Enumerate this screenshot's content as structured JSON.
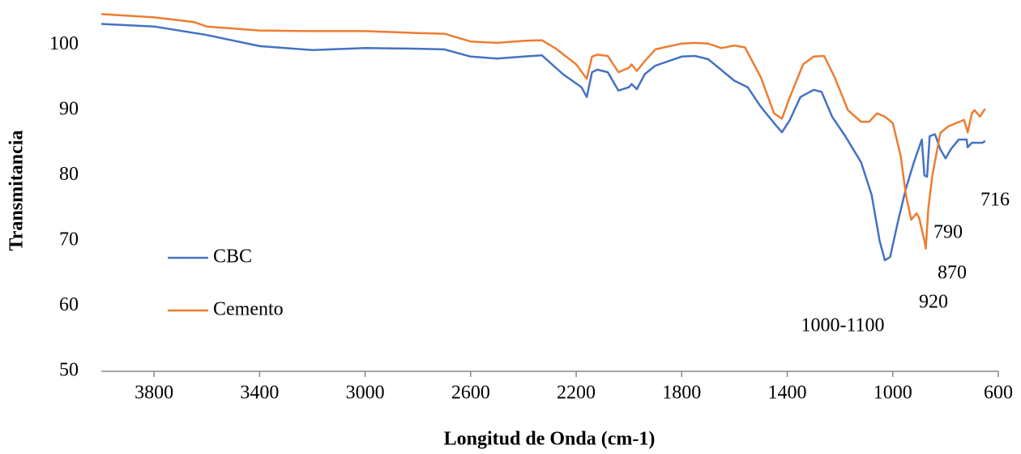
{
  "chart_data": {
    "type": "line",
    "xlabel": "Longitud de Onda (cm-1)",
    "ylabel": "Transmitancia",
    "xlim": [
      4000,
      600
    ],
    "xticks": [
      3800,
      3400,
      3000,
      2600,
      2200,
      1800,
      1400,
      1000,
      600
    ],
    "ylim": [
      50,
      105
    ],
    "yticks": [
      50,
      60,
      70,
      80,
      90,
      100
    ],
    "grid": false,
    "legend": "left",
    "annotations": [
      "716",
      "790",
      "870",
      "920",
      "1000-1100"
    ],
    "series": [
      {
        "name": "CBC",
        "color": "#4472c4",
        "x": [
          4000,
          3800,
          3600,
          3400,
          3200,
          3000,
          2800,
          2700,
          2600,
          2500,
          2400,
          2330,
          2250,
          2180,
          2160,
          2140,
          2120,
          2080,
          2040,
          2000,
          1990,
          1970,
          1940,
          1900,
          1800,
          1750,
          1700,
          1600,
          1550,
          1500,
          1450,
          1420,
          1390,
          1350,
          1300,
          1270,
          1230,
          1180,
          1120,
          1080,
          1050,
          1030,
          1010,
          980,
          950,
          920,
          890,
          880,
          870,
          860,
          840,
          820,
          800,
          780,
          750,
          720,
          716,
          700,
          660,
          650
        ],
        "values": [
          103.2,
          102.8,
          101.5,
          99.8,
          99.2,
          99.5,
          99.4,
          99.3,
          98.2,
          97.9,
          98.2,
          98.4,
          95.5,
          93.5,
          92,
          95.8,
          96.2,
          95.8,
          93,
          93.5,
          94,
          93.2,
          95.5,
          96.8,
          98.2,
          98.3,
          97.8,
          94.5,
          93.5,
          90.5,
          88,
          86.6,
          88.5,
          92,
          93.1,
          92.8,
          89,
          86,
          82,
          77,
          70,
          67,
          67.5,
          73,
          78,
          82,
          85.5,
          80,
          79.8,
          86,
          86.3,
          84,
          82.6,
          84,
          85.5,
          85.5,
          84.3,
          85,
          85,
          85.3
        ]
      },
      {
        "name": "Cemento",
        "color": "#ed7d31",
        "x": [
          4000,
          3800,
          3650,
          3600,
          3400,
          3200,
          3000,
          2800,
          2700,
          2600,
          2500,
          2400,
          2330,
          2280,
          2200,
          2160,
          2140,
          2120,
          2080,
          2040,
          2000,
          1990,
          1970,
          1940,
          1900,
          1800,
          1750,
          1700,
          1650,
          1600,
          1560,
          1500,
          1450,
          1420,
          1390,
          1340,
          1300,
          1260,
          1220,
          1170,
          1120,
          1090,
          1060,
          1030,
          1000,
          970,
          950,
          930,
          910,
          900,
          880,
          875,
          865,
          850,
          820,
          790,
          760,
          730,
          716,
          700,
          690,
          670,
          650
        ],
        "values": [
          104.7,
          104.2,
          103.5,
          102.8,
          102.2,
          102.1,
          102.1,
          101.8,
          101.7,
          100.5,
          100.3,
          100.6,
          100.7,
          99.5,
          97,
          94.8,
          98.2,
          98.5,
          98.3,
          95.8,
          96.5,
          97,
          96,
          97.5,
          99.3,
          100.2,
          100.3,
          100.2,
          99.5,
          99.9,
          99.6,
          95,
          89.5,
          88.7,
          92,
          97,
          98.2,
          98.3,
          95,
          90,
          88.2,
          88.2,
          89.5,
          89,
          88,
          83,
          77,
          73.2,
          74.2,
          73.5,
          70,
          68.8,
          75,
          80,
          86.5,
          87.5,
          88,
          88.5,
          86.6,
          89.5,
          90,
          89,
          90.2
        ]
      }
    ]
  }
}
